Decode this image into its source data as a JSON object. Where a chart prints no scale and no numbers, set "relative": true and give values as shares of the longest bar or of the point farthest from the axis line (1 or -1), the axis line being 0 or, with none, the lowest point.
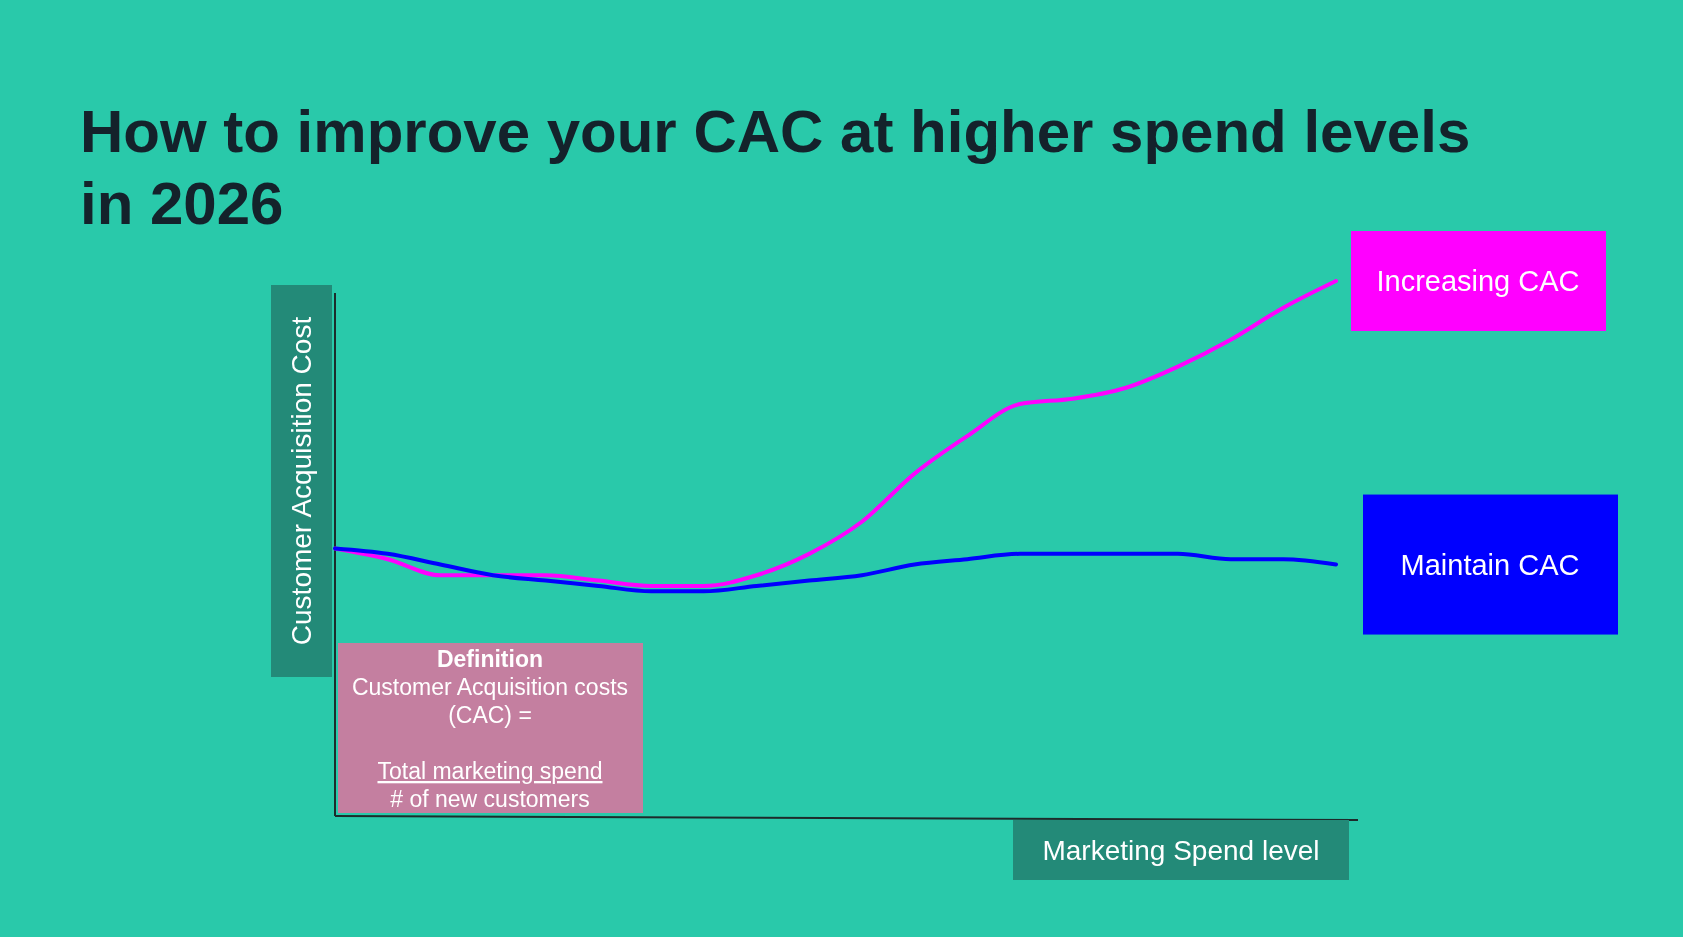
{
  "chart_data": {
    "type": "line",
    "title": "How to improve your CAC at higher spend levels in 2026",
    "xlabel": "Marketing Spend level",
    "ylabel": "Customer Acquisition Cost",
    "relative": true,
    "categories": [
      null,
      null,
      null,
      null,
      null,
      null,
      null,
      null,
      null,
      null,
      null,
      null,
      null,
      null,
      null,
      null,
      null,
      null,
      null,
      null
    ],
    "series": [
      {
        "name": "Increasing CAC",
        "color": "#ff00ff",
        "values": [
          0.5,
          0.48,
          0.45,
          0.45,
          0.45,
          0.44,
          0.43,
          0.43,
          0.45,
          0.49,
          0.55,
          0.64,
          0.71,
          0.77,
          0.78,
          0.8,
          0.84,
          0.89,
          0.95,
          1
        ]
      },
      {
        "name": "Maintain CAC",
        "color": "#0000ff",
        "values": [
          0.5,
          0.49,
          0.47,
          0.45,
          0.44,
          0.43,
          0.42,
          0.42,
          0.43,
          0.44,
          0.45,
          0.47,
          0.48,
          0.49,
          0.49,
          0.49,
          0.49,
          0.48,
          0.48,
          0.47
        ]
      }
    ],
    "annotations": [
      "Definition",
      "Customer Acquisition costs (CAC) =",
      "Total marketing spend",
      "# of new customers"
    ]
  }
}
